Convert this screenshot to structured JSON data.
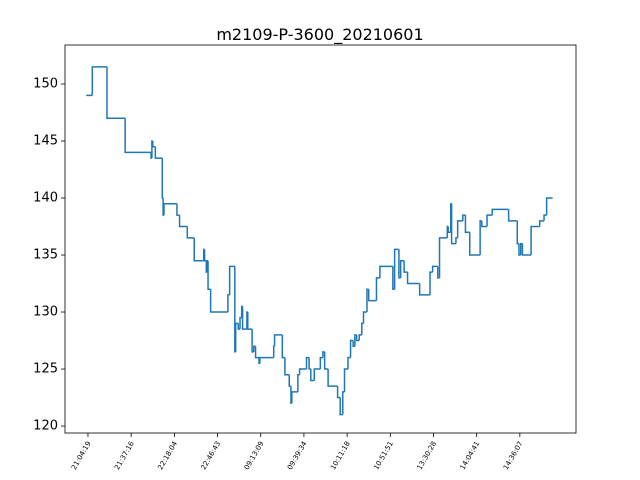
{
  "chart_data": {
    "type": "line",
    "title": "m2109-P-3600_20210601",
    "drawstyle": "steps-post",
    "x": [
      -2,
      5,
      22,
      43,
      73,
      74,
      75,
      78,
      86,
      87,
      88,
      103,
      106,
      115,
      123,
      134,
      135,
      137,
      138,
      139,
      142,
      162,
      164,
      170,
      171,
      174,
      176,
      178,
      179,
      184,
      185,
      190,
      192,
      194,
      198,
      199,
      215,
      216,
      225,
      228,
      233,
      235,
      236,
      243,
      245,
      253,
      256,
      258,
      262,
      269,
      272,
      274,
      278,
      289,
      292,
      295,
      297,
      301,
      304,
      307,
      309,
      311,
      314,
      317,
      319,
      323,
      325,
      334,
      338,
      353,
      355,
      360,
      362,
      366,
      370,
      384,
      396,
      399,
      405,
      407,
      416,
      417,
      420,
      421,
      426,
      428,
      434,
      437,
      442,
      454,
      456,
      462,
      468,
      487,
      497,
      499,
      501,
      503,
      513,
      523,
      528,
      531,
      538
    ],
    "series": [
      {
        "color": "#1f77b4",
        "values": [
          149,
          151.5,
          147,
          144,
          143.5,
          145,
          144.5,
          143.5,
          140,
          138.5,
          139.5,
          138.5,
          137.5,
          136.5,
          134.5,
          135.5,
          134.5,
          133.5,
          134.5,
          132,
          130,
          131.5,
          134,
          126.5,
          129,
          128.5,
          129.5,
          130.5,
          128.5,
          130,
          128.5,
          126.5,
          127,
          126,
          125.5,
          126,
          127,
          128,
          126,
          124.5,
          123.5,
          122,
          123,
          124.5,
          125,
          126,
          125,
          124,
          125,
          126,
          126.5,
          125,
          123.5,
          122.5,
          121,
          123,
          125,
          126,
          127.5,
          127,
          128,
          127.5,
          128,
          129,
          130,
          132,
          131,
          133,
          134,
          132,
          135.5,
          133,
          134.5,
          133.5,
          132.5,
          131.5,
          133.5,
          134,
          133,
          136.5,
          137.5,
          137,
          139.5,
          136,
          136.5,
          138,
          138.5,
          137,
          135,
          138,
          137.5,
          138.5,
          139,
          138,
          136,
          135,
          136,
          135,
          137.5,
          138,
          138.5,
          140,
          140
        ]
      }
    ],
    "xlim": [
      -26.6,
      565
    ],
    "xticks": [
      {
        "value": 0,
        "label": "21:04:19"
      },
      {
        "value": 50,
        "label": "21:37:16"
      },
      {
        "value": 100,
        "label": "22:18:04"
      },
      {
        "value": 150,
        "label": "22:46:43"
      },
      {
        "value": 200,
        "label": "09:13:09"
      },
      {
        "value": 250,
        "label": "09:39:34"
      },
      {
        "value": 300,
        "label": "10:11:18"
      },
      {
        "value": 350,
        "label": "10:51:51"
      },
      {
        "value": 400,
        "label": "13:30:28"
      },
      {
        "value": 450,
        "label": "14:04:41"
      },
      {
        "value": 500,
        "label": "14:36:07"
      }
    ],
    "ylim": [
      119.39,
      153.42
    ],
    "yticks": [
      120,
      125,
      130,
      135,
      140,
      145,
      150
    ]
  }
}
